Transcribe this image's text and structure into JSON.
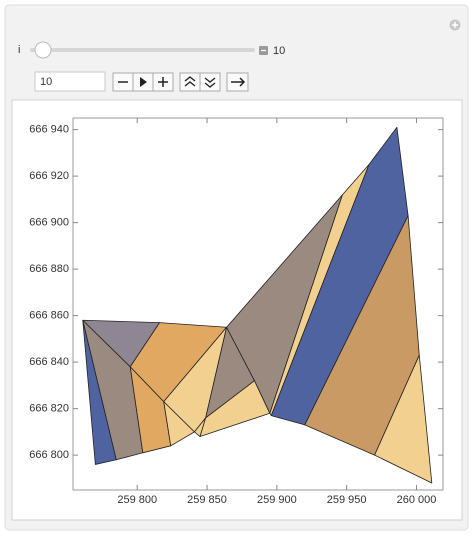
{
  "controls": {
    "slider_label": "i",
    "slider_value": 10,
    "input_value": 10
  },
  "chart_data": {
    "type": "polygons",
    "xlim": [
      259754,
      260019
    ],
    "ylim": [
      666785,
      666945
    ],
    "xticks": [
      {
        "value": 259800,
        "label": "259 800"
      },
      {
        "value": 259850,
        "label": "259 850"
      },
      {
        "value": 259900,
        "label": "259 900"
      },
      {
        "value": 259950,
        "label": "259 950"
      },
      {
        "value": 260000,
        "label": "260 000"
      }
    ],
    "yticks": [
      {
        "value": 666800,
        "label": "666 800"
      },
      {
        "value": 666820,
        "label": "666 820"
      },
      {
        "value": 666840,
        "label": "666 840"
      },
      {
        "value": 666860,
        "label": "666 860"
      },
      {
        "value": 666880,
        "label": "666 880"
      },
      {
        "value": 666900,
        "label": "666 900"
      },
      {
        "value": 666920,
        "label": "666 920"
      },
      {
        "value": 666940,
        "label": "666 940"
      }
    ],
    "polygons": [
      {
        "color": "#4f63a0",
        "x": [
          259761,
          259785,
          259770
        ],
        "y": [
          666858,
          666798,
          666796
        ]
      },
      {
        "color": "#9a8a7f",
        "x": [
          259761,
          259795,
          259804,
          259785
        ],
        "y": [
          666858,
          666838,
          666801,
          666798
        ]
      },
      {
        "color": "#8f8694",
        "x": [
          259761,
          259816,
          259795
        ],
        "y": [
          666858,
          666857,
          666838
        ]
      },
      {
        "color": "#e0a860",
        "x": [
          259795,
          259819,
          259824,
          259804
        ],
        "y": [
          666838,
          666823,
          666804,
          666801
        ]
      },
      {
        "color": "#e0a860",
        "x": [
          259816,
          259864,
          259819,
          259795
        ],
        "y": [
          666857,
          666855,
          666823,
          666838
        ]
      },
      {
        "color": "#f2d08f",
        "x": [
          259819,
          259841,
          259824
        ],
        "y": [
          666823,
          666810,
          666804
        ]
      },
      {
        "color": "#f2d08f",
        "x": [
          259864,
          259849,
          259841,
          259819
        ],
        "y": [
          666855,
          666816,
          666810,
          666823
        ]
      },
      {
        "color": "#f2d08f",
        "x": [
          259841,
          259849,
          259845
        ],
        "y": [
          666810,
          666816,
          666808
        ]
      },
      {
        "color": "#9a8a7f",
        "x": [
          259864,
          259884,
          259849
        ],
        "y": [
          666855,
          666832,
          666816
        ]
      },
      {
        "color": "#f2d08f",
        "x": [
          259849,
          259884,
          259895,
          259845
        ],
        "y": [
          666816,
          666832,
          666818,
          666808
        ]
      },
      {
        "color": "#9a8a7f",
        "x": [
          259864,
          259947,
          259895,
          259884
        ],
        "y": [
          666855,
          666912,
          666818,
          666832
        ]
      },
      {
        "color": "#f2d08f",
        "x": [
          259947,
          259966,
          259896,
          259895
        ],
        "y": [
          666912,
          666925,
          666817,
          666818
        ]
      },
      {
        "color": "#4f63a0",
        "x": [
          259966,
          259986,
          259994,
          259920,
          259896
        ],
        "y": [
          666925,
          666941,
          666903,
          666813,
          666817
        ]
      },
      {
        "color": "#c99a63",
        "x": [
          259994,
          260002,
          259970,
          259920
        ],
        "y": [
          666903,
          666843,
          666800,
          666813
        ]
      },
      {
        "color": "#f2d08f",
        "x": [
          260002,
          260011,
          259970
        ],
        "y": [
          666843,
          666788,
          666800
        ]
      }
    ]
  }
}
